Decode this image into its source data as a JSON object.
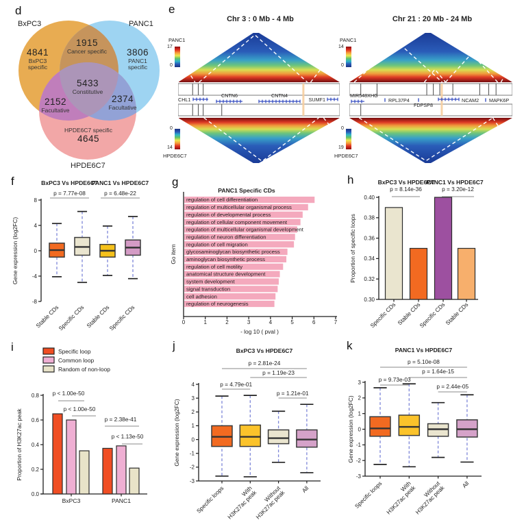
{
  "figure": {
    "panel_labels": {
      "d": "d",
      "e": "e",
      "f": "f",
      "g": "g",
      "h": "h",
      "i": "i",
      "j": "j",
      "k": "k"
    },
    "venn": {
      "set_labels": [
        "BxPC3",
        "PANC1",
        "HPDE6C7"
      ],
      "colors": {
        "bxpc3_only": "#E8AC52",
        "panc1_only": "#9ED4F2",
        "hpde6c7_only": "#F2A7A7",
        "bxpc3_panc1": "#C6945C",
        "bxpc3_hpde6c7": "#C07EBB",
        "panc1_hpde6c7": "#92A2D6",
        "center": "#AC95B8"
      },
      "regions": [
        {
          "value": "4841",
          "label": "BxPC3 specific"
        },
        {
          "value": "1915",
          "label": "Cancer specific"
        },
        {
          "value": "3806",
          "label": "PANC1 specific"
        },
        {
          "value": "5433",
          "label": "Constitutive"
        },
        {
          "value": "2152",
          "label": "Facultative"
        },
        {
          "value": "2374",
          "label": "Facultative"
        },
        {
          "value": "4645",
          "label": "HPDE6C7 specific"
        }
      ]
    },
    "hic": {
      "maps": [
        {
          "title": "Chr 3 : 0 Mb - 4 Mb",
          "top_label": "PANC1",
          "top_scale_max": "17",
          "top_scale_min": "0",
          "bottom_label": "HPDE6C7",
          "bottom_scale_min": "0",
          "bottom_scale_max": "14",
          "genes": [
            "CHL1",
            "CNTN6",
            "CNTN4",
            "SUMF1"
          ]
        },
        {
          "title": "Chr 21 : 20 Mb - 24 Mb",
          "top_label": "PANC1",
          "top_scale_max": "14",
          "top_scale_min": "0",
          "bottom_label": "HPDE6C7",
          "bottom_scale_min": "0",
          "bottom_scale_max": "19",
          "genes": [
            "MIR548XHG",
            "RPL37P4",
            "FDPSP8",
            "NCAM2",
            "MAPK6P"
          ]
        }
      ]
    }
  },
  "chart_data": [
    {
      "id": "f",
      "type": "box",
      "title_groups": [
        {
          "label": "BxPC3 Vs HPDE6C7",
          "span": [
            0,
            1
          ]
        },
        {
          "label": "PANC1 Vs HPDE6C7",
          "span": [
            2,
            3
          ]
        }
      ],
      "ylabel": "Gene expression (log2FC)",
      "ylim": [
        -8,
        8
      ],
      "yticks": [
        8,
        4,
        0,
        -4,
        -8
      ],
      "categories": [
        [
          "Stable CDs"
        ],
        [
          "Specific CDs"
        ],
        [
          "Stable CDs"
        ],
        [
          "Specific CDs"
        ]
      ],
      "colors": [
        "#F26A21",
        "#EAE5CF",
        "#F5C11B",
        "#D49BC5"
      ],
      "boxes": [
        {
          "low": -4.1,
          "q1": -1.0,
          "median": 0.1,
          "q3": 1.2,
          "high": 4.3
        },
        {
          "low": -5.0,
          "q1": -0.7,
          "median": 0.6,
          "q3": 2.1,
          "high": 6.2
        },
        {
          "low": -3.9,
          "q1": -1.0,
          "median": 0.0,
          "q3": 1.0,
          "high": 3.9
        },
        {
          "low": -4.4,
          "q1": -0.7,
          "median": 0.5,
          "q3": 1.7,
          "high": 5.4
        }
      ],
      "pvalues": [
        {
          "text": "p = 7.77e-08",
          "span": [
            0,
            1
          ]
        },
        {
          "text": "p = 6.48e-22",
          "span": [
            2,
            3
          ]
        }
      ]
    },
    {
      "id": "g",
      "type": "hbar",
      "title": "PANC1 Specific CDs",
      "xlabel": "- log 10 ( pval )",
      "ylabel": "Go item",
      "xlim": [
        0,
        7
      ],
      "xticks": [
        0,
        1,
        2,
        3,
        4,
        5,
        6,
        7
      ],
      "bar_color": "#F4A9BD",
      "categories": [
        "regulation of cell differentiation",
        "regulation of multicellular organismal process",
        "regulation of developmental process",
        "regulation of cellular component movement",
        "regulation of multicellular organismal development",
        "regulation of neuron differentiation",
        "regulation of cell migration",
        "glycosaminoglycan biosynthetic process",
        "aminoglycan biosynthetic process",
        "regulation of cell motility",
        "anatomical structure development",
        "system development",
        "signal transduction",
        "cell adhesion",
        "regulation of neurogenesis"
      ],
      "values": [
        6.0,
        5.7,
        5.45,
        5.35,
        5.2,
        5.1,
        5.05,
        4.75,
        4.7,
        4.55,
        4.4,
        4.35,
        4.3,
        4.2,
        4.15
      ]
    },
    {
      "id": "h",
      "type": "vbar",
      "title_groups": [
        {
          "label": "BxPC3 Vs HPDE6C7",
          "span": [
            0,
            1
          ]
        },
        {
          "label": "PANC1 Vs HPDE6C7",
          "span": [
            2,
            3
          ]
        }
      ],
      "ylabel": "Proportion of specific loops",
      "ylim": [
        0.3,
        0.4
      ],
      "yticks": [
        "0.40",
        "0.38",
        "0.36",
        "0.34",
        "0.32",
        "0.30"
      ],
      "categories": [
        "Specific CDs",
        "Stable CDs",
        "Specific CDs",
        "Stable CDs"
      ],
      "values": [
        0.39,
        0.35,
        0.4,
        0.35
      ],
      "colors": [
        "#EAE5CF",
        "#F26A21",
        "#9D50A0",
        "#F7AF6C"
      ],
      "pvalues": [
        {
          "text": "p = 8.14e-36",
          "span": [
            0,
            1
          ]
        },
        {
          "text": "p = 3.20e-12",
          "span": [
            2,
            3
          ]
        }
      ]
    },
    {
      "id": "i",
      "type": "grouped-vbar",
      "ylabel": "Proportion of H3K27ac peak",
      "ylim": [
        0,
        0.8
      ],
      "yticks": [
        "0.8",
        "0.6",
        "0.4",
        "0.2",
        "0.0"
      ],
      "legend": [
        {
          "label": "Specific loop",
          "color": "#F04E23"
        },
        {
          "label": "Common loop",
          "color": "#EFAFD3"
        },
        {
          "label": "Random of non-loop",
          "color": "#E8E3C8"
        }
      ],
      "groups": [
        "BxPC3",
        "PANC1"
      ],
      "series_values": [
        [
          0.65,
          0.6,
          0.35
        ],
        [
          0.37,
          0.39,
          0.21
        ]
      ],
      "pvalues": [
        {
          "text": "p < 1.00e-50"
        },
        {
          "text": "p < 1.00e-50"
        },
        {
          "text": "p = 2.38e-41"
        },
        {
          "text": "p < 1.13e-50"
        }
      ]
    },
    {
      "id": "j",
      "type": "box",
      "title": "BxPC3 Vs HPDE6C7",
      "ylabel": "Gene expression (log2FC)",
      "ylim": [
        -3,
        4
      ],
      "yticks": [
        4,
        3,
        2,
        1,
        0,
        -1,
        -2,
        -3
      ],
      "categories": [
        [
          "Specific loops"
        ],
        [
          "With",
          "H3K27ac peak"
        ],
        [
          "Without",
          "H3K27ac peak"
        ],
        [
          "All"
        ]
      ],
      "colors": [
        "#F26A21",
        "#FBC32B",
        "#EAE5CF",
        "#D5A2C9"
      ],
      "boxes": [
        {
          "low": -2.65,
          "q1": -0.5,
          "median": 0.2,
          "q3": 1.0,
          "high": 3.15
        },
        {
          "low": -2.7,
          "q1": -0.5,
          "median": 0.2,
          "q3": 1.05,
          "high": 3.2
        },
        {
          "low": -1.65,
          "q1": -0.3,
          "median": 0.1,
          "q3": 0.7,
          "high": 2.05
        },
        {
          "low": -2.4,
          "q1": -0.55,
          "median": 0.0,
          "q3": 0.7,
          "high": 2.55
        }
      ],
      "pvalues": [
        {
          "text": "p = 2.81e-24",
          "span": [
            0,
            3
          ]
        },
        {
          "text": "p = 1.19e-23",
          "span": [
            1,
            3
          ]
        },
        {
          "text": "p = 4.79e-01",
          "span": [
            0,
            1
          ]
        },
        {
          "text": "p = 1.21e-01",
          "span": [
            2,
            3
          ]
        }
      ]
    },
    {
      "id": "k",
      "type": "box",
      "title": "PANC1 Vs HPDE6C7",
      "ylabel": "Gene expression (log2FC)",
      "ylim": [
        -3,
        3
      ],
      "yticks": [
        3,
        2,
        1,
        0,
        -1,
        -2,
        -3
      ],
      "categories": [
        [
          "Specific loops"
        ],
        [
          "With",
          "H3K27ac peak"
        ],
        [
          "Without",
          "H3K27ac peak"
        ],
        [
          "All"
        ]
      ],
      "colors": [
        "#F26A21",
        "#FBC32B",
        "#EAE5CF",
        "#D5A2C9"
      ],
      "boxes": [
        {
          "low": -2.25,
          "q1": -0.45,
          "median": 0.05,
          "q3": 0.8,
          "high": 2.65
        },
        {
          "low": -2.4,
          "q1": -0.4,
          "median": 0.15,
          "q3": 0.9,
          "high": 2.9
        },
        {
          "low": -1.8,
          "q1": -0.45,
          "median": 0.0,
          "q3": 0.35,
          "high": 1.7
        },
        {
          "low": -2.1,
          "q1": -0.5,
          "median": 0.0,
          "q3": 0.6,
          "high": 2.2
        }
      ],
      "pvalues": [
        {
          "text": "p = 5.10e-08",
          "span": [
            0,
            3
          ]
        },
        {
          "text": "p = 1.64e-15",
          "span": [
            1,
            3
          ]
        },
        {
          "text": "p = 9.73e-03",
          "span": [
            0,
            1
          ]
        },
        {
          "text": "p = 2.44e-05",
          "span": [
            2,
            3
          ]
        }
      ]
    }
  ]
}
